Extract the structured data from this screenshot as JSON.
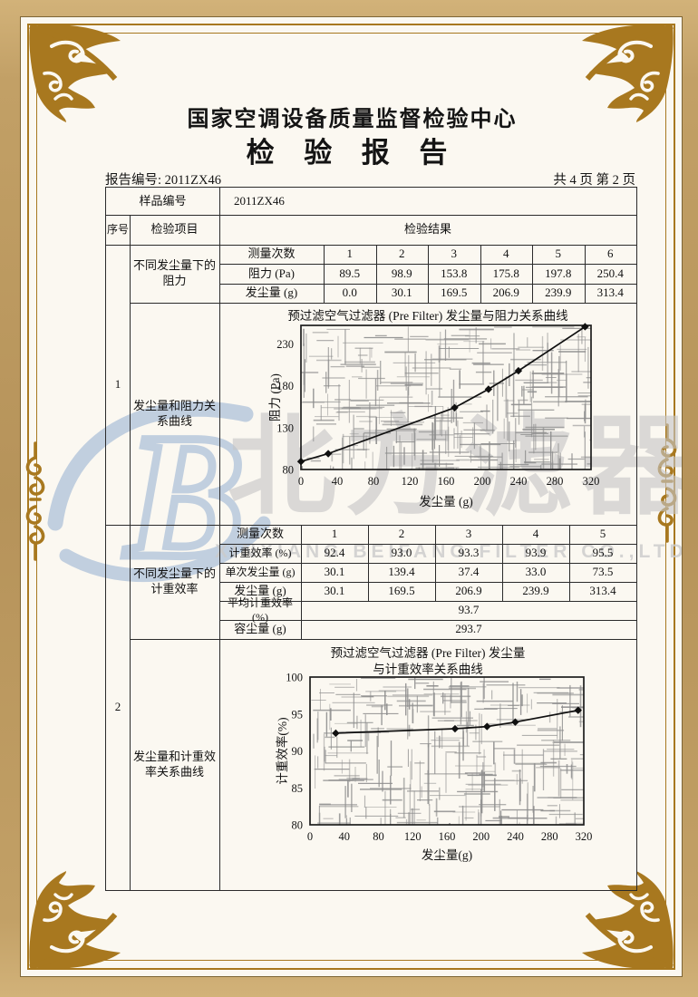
{
  "header": {
    "org_name": "国家空调设备质量监督检验中心",
    "doc_title": "检 验 报 告",
    "report_no": "报告编号: 2011ZX46",
    "page_info": "共 4 页 第 2 页"
  },
  "table": {
    "sample_label": "样品编号",
    "sample_value": "2011ZX46",
    "col_seq": "序号",
    "col_item": "检验项目",
    "col_result": "检验结果",
    "section1": {
      "seq": "1",
      "item_table": "不同发尘量下的阻力",
      "item_chart": "发尘量和阻力关系曲线",
      "rows": [
        {
          "label": "测量次数",
          "values": [
            "1",
            "2",
            "3",
            "4",
            "5",
            "6"
          ]
        },
        {
          "label": "阻力 (Pa)",
          "values": [
            "89.5",
            "98.9",
            "153.8",
            "175.8",
            "197.8",
            "250.4"
          ]
        },
        {
          "label": "发尘量 (g)",
          "values": [
            "0.0",
            "30.1",
            "169.5",
            "206.9",
            "239.9",
            "313.4"
          ]
        }
      ]
    },
    "section2": {
      "seq": "2",
      "item_table": "不同发尘量下的计重效率",
      "item_chart": "发尘量和计重效率关系曲线",
      "rows": [
        {
          "label": "测量次数",
          "values": [
            "1",
            "2",
            "3",
            "4",
            "5"
          ]
        },
        {
          "label": "计重效率 (%)",
          "values": [
            "92.4",
            "93.0",
            "93.3",
            "93.9",
            "95.5"
          ]
        },
        {
          "label": "单次发尘量 (g)",
          "values": [
            "30.1",
            "139.4",
            "37.4",
            "33.0",
            "73.5"
          ]
        },
        {
          "label": "发尘量 (g)",
          "values": [
            "30.1",
            "169.5",
            "206.9",
            "239.9",
            "313.4"
          ]
        }
      ],
      "merged_rows": [
        {
          "label": "平均计重效率 (%)",
          "value": "93.7"
        },
        {
          "label": "容尘量 (g)",
          "value": "293.7"
        }
      ]
    }
  },
  "chart_data": [
    {
      "type": "line",
      "title": "预过滤空气过滤器 (Pre Filter) 发尘量与阻力关系曲线",
      "xlabel": "发尘量 (g)",
      "ylabel": "阻力 (Pa)",
      "x": [
        0,
        30.1,
        169.5,
        206.9,
        239.9,
        313.4
      ],
      "y": [
        89.5,
        98.9,
        153.8,
        175.8,
        197.8,
        250.4
      ],
      "xlim": [
        0,
        320
      ],
      "ylim": [
        80,
        252
      ],
      "xticks": [
        0,
        40,
        80,
        120,
        160,
        200,
        240,
        280,
        320
      ],
      "yticks": [
        80,
        130,
        180,
        230
      ],
      "grid": true,
      "marker": "diamond"
    },
    {
      "type": "line",
      "title": "预过滤空气过滤器 (Pre Filter) 发尘量 与计重效率关系曲线",
      "title_line1": "预过滤空气过滤器 (Pre Filter) 发尘量",
      "title_line2": "与计重效率关系曲线",
      "xlabel": "发尘量(g)",
      "ylabel": "计重效率(%)",
      "x": [
        30.1,
        169.5,
        206.9,
        239.9,
        313.4
      ],
      "y": [
        92.4,
        93.0,
        93.3,
        93.9,
        95.5
      ],
      "xlim": [
        0,
        320
      ],
      "ylim": [
        80,
        100
      ],
      "xticks": [
        0,
        40,
        80,
        120,
        160,
        200,
        240,
        280,
        320
      ],
      "yticks": [
        80,
        85,
        90,
        95,
        100
      ],
      "grid": true,
      "marker": "diamond"
    }
  ],
  "watermark": {
    "logo_letter": "B",
    "brand_text": "北方滤器",
    "brand_subtext": "XINXIANG BEIFANG FILTER CO.,LTD."
  },
  "colors": {
    "frame_gold": "#a8781f",
    "frame_band": "#c2a066",
    "paper": "#fbf8f1",
    "ink": "#141414",
    "watermark_gray": "#c6c6c6",
    "logo_blue": "#b7c8dc"
  }
}
